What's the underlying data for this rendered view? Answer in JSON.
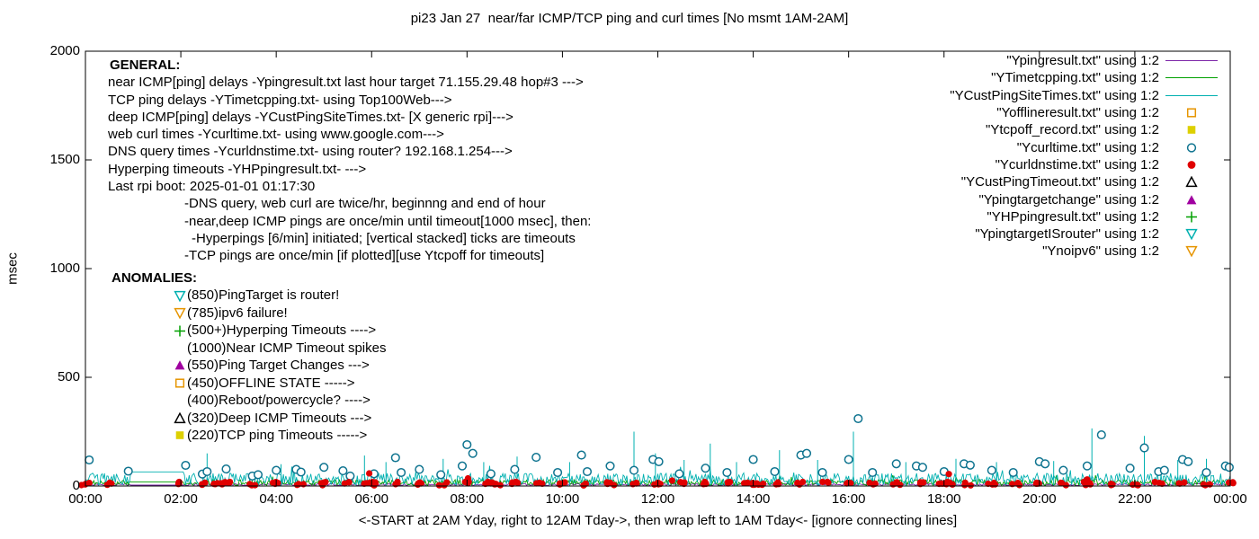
{
  "chart_data": {
    "type": "line+scatter",
    "title": "pi23 Jan 27  near/far ICMP/TCP ping and curl times [No msmt 1AM-2AM]",
    "xlabel": "<-START at 2AM Yday, right to 12AM Tday->, then wrap left to 1AM Tday<- [ignore connecting lines]",
    "ylabel": "msec",
    "ylim": [
      0,
      2000
    ],
    "xlim_hours": [
      0,
      24
    ],
    "grid": false,
    "legend_position": "top-right-inside",
    "y_ticks": [
      0,
      500,
      1000,
      1500,
      2000
    ],
    "y_tick_labels": [
      "0",
      "500",
      "1000",
      "1500",
      "2000"
    ],
    "x_tick_labels": [
      "00:00",
      "02:00",
      "04:00",
      "06:00",
      "08:00",
      "10:00",
      "12:00",
      "14:00",
      "16:00",
      "18:00",
      "20:00",
      "22:00",
      "00:00"
    ],
    "series": [
      {
        "label": "\"Ypingresult.txt\" using 1:2",
        "color": "#7d26a8",
        "style": "line"
      },
      {
        "label": "\"YTimetcpping.txt\" using 1:2",
        "color": "#00a000",
        "style": "line"
      },
      {
        "label": "\"YCustPingSiteTimes.txt\" using 1:2",
        "color": "#00b0b0",
        "style": "line"
      },
      {
        "label": "\"Yofflineresult.txt\" using 1:2",
        "color": "#e69500",
        "style": "open-square"
      },
      {
        "label": "\"Ytcpoff_record.txt\" using 1:2",
        "color": "#ddd000",
        "style": "filled-square"
      },
      {
        "label": "\"Ycurltime.txt\" using 1:2",
        "color": "#0f7490",
        "style": "open-circle"
      },
      {
        "label": "\"Ycurldnstime.txt\" using 1:2",
        "color": "#e00000",
        "style": "filled-circle"
      },
      {
        "label": "\"YCustPingTimeout.txt\" using 1:2",
        "color": "#000000",
        "style": "open-triangle-up"
      },
      {
        "label": "\"Ypingtargetchange\" using 1:2",
        "color": "#a000a0",
        "style": "filled-triangle-up"
      },
      {
        "label": "\"YHPpingresult.txt\" using 1:2",
        "color": "#00a000",
        "style": "plus"
      },
      {
        "label": "\"YpingtargetISrouter\" using 1:2",
        "color": "#00b0b0",
        "style": "open-triangle-down"
      },
      {
        "label": "\"Ynoipv6\" using 1:2",
        "color": "#e69500",
        "style": "open-triangle-down"
      }
    ],
    "line_series": [
      {
        "name": "Ypingresult.txt",
        "color": "#7d26a8",
        "base": 2,
        "amp": 9,
        "spike_amp": 0,
        "flat": 4
      },
      {
        "name": "YTimetcpping.txt",
        "color": "#00a000",
        "base": 3,
        "amp": 26,
        "spike_amp": 35,
        "flat": 18
      },
      {
        "name": "YCustPingSiteTimes.txt",
        "color": "#00b0b0",
        "base": 4,
        "amp": 55,
        "spike_amp": 60,
        "flat": 65
      }
    ],
    "gap": {
      "start_hour": 0.95,
      "end_hour": 2.05,
      "note": "No msmt 1AM-2AM"
    },
    "spikes": [
      [
        2.55,
        150
      ],
      [
        4.1,
        100
      ],
      [
        5.85,
        140
      ],
      [
        6.3,
        110
      ],
      [
        7.5,
        125
      ],
      [
        8.35,
        110
      ],
      [
        9.05,
        135
      ],
      [
        10.15,
        110
      ],
      [
        11.5,
        250
      ],
      [
        11.95,
        150
      ],
      [
        12.55,
        120
      ],
      [
        13.1,
        195
      ],
      [
        13.65,
        110
      ],
      [
        14.55,
        165
      ],
      [
        15.35,
        120
      ],
      [
        16.1,
        250
      ],
      [
        17.2,
        110
      ],
      [
        18.25,
        125
      ],
      [
        19.1,
        110
      ],
      [
        20.3,
        115
      ],
      [
        21.1,
        265
      ],
      [
        22.2,
        230
      ],
      [
        22.9,
        120
      ],
      [
        23.5,
        125
      ]
    ],
    "curl_points": [
      [
        0.08,
        120
      ],
      [
        0.9,
        68
      ],
      [
        2.1,
        95
      ],
      [
        2.45,
        55
      ],
      [
        2.55,
        66
      ],
      [
        2.95,
        78
      ],
      [
        3.5,
        46
      ],
      [
        3.62,
        52
      ],
      [
        4.0,
        72
      ],
      [
        4.42,
        76
      ],
      [
        4.52,
        64
      ],
      [
        5.0,
        86
      ],
      [
        5.4,
        70
      ],
      [
        5.55,
        46
      ],
      [
        6.05,
        56
      ],
      [
        6.5,
        130
      ],
      [
        6.62,
        62
      ],
      [
        7.0,
        76
      ],
      [
        7.45,
        52
      ],
      [
        7.9,
        92
      ],
      [
        8.0,
        190
      ],
      [
        8.12,
        150
      ],
      [
        8.5,
        56
      ],
      [
        9.0,
        76
      ],
      [
        9.45,
        132
      ],
      [
        9.9,
        62
      ],
      [
        10.4,
        142
      ],
      [
        10.52,
        66
      ],
      [
        11.0,
        92
      ],
      [
        11.5,
        72
      ],
      [
        11.9,
        122
      ],
      [
        12.02,
        112
      ],
      [
        12.45,
        56
      ],
      [
        13.0,
        82
      ],
      [
        13.45,
        62
      ],
      [
        14.0,
        122
      ],
      [
        14.45,
        66
      ],
      [
        15.0,
        142
      ],
      [
        15.12,
        150
      ],
      [
        15.45,
        62
      ],
      [
        16.0,
        122
      ],
      [
        16.2,
        310
      ],
      [
        16.5,
        62
      ],
      [
        17.0,
        102
      ],
      [
        17.42,
        92
      ],
      [
        17.55,
        86
      ],
      [
        18.0,
        66
      ],
      [
        18.42,
        102
      ],
      [
        18.55,
        96
      ],
      [
        19.0,
        72
      ],
      [
        19.45,
        62
      ],
      [
        20.0,
        112
      ],
      [
        20.12,
        102
      ],
      [
        20.5,
        72
      ],
      [
        21.0,
        92
      ],
      [
        21.3,
        235
      ],
      [
        21.9,
        82
      ],
      [
        22.2,
        175
      ],
      [
        22.5,
        66
      ],
      [
        22.62,
        72
      ],
      [
        23.0,
        122
      ],
      [
        23.12,
        112
      ],
      [
        23.5,
        62
      ],
      [
        23.9,
        92
      ],
      [
        23.98,
        86
      ]
    ],
    "dns_cluster_hours": [
      0,
      0.5,
      2,
      2.5,
      3,
      3.5,
      4,
      4.5,
      5,
      5.5,
      6,
      6.5,
      7,
      7.5,
      8,
      8.5,
      9,
      9.5,
      10,
      10.5,
      11,
      11.5,
      12,
      12.5,
      13,
      13.5,
      14,
      14.5,
      15,
      15.5,
      16,
      16.5,
      17,
      17.5,
      18,
      18.5,
      19,
      19.5,
      20,
      20.5,
      21,
      21.5,
      22,
      22.5,
      23,
      23.5,
      24
    ],
    "dns_wide_cluster_hours": [
      2.8,
      6,
      8.5,
      14,
      18.1
    ],
    "dns_high_points": [
      [
        5.95,
        58
      ],
      [
        8.02,
        35
      ],
      [
        12.3,
        25
      ],
      [
        18.1,
        55
      ],
      [
        21.0,
        30
      ]
    ]
  },
  "annotations": {
    "general": {
      "heading": "GENERAL:",
      "lines": [
        {
          "text": "near ICMP[ping] delays -Ypingresult.txt last hour target 71.155.29.48 hop#3 --->",
          "indent": 0
        },
        {
          "text": "TCP ping delays -YTimetcpping.txt- using Top100Web--->",
          "indent": 0
        },
        {
          "text": "deep ICMP[ping] delays -YCustPingSiteTimes.txt- [X generic rpi]--->",
          "indent": 0
        },
        {
          "text": "web curl times -Ycurltime.txt- using www.google.com--->",
          "indent": 0
        },
        {
          "text": "DNS query times -Ycurldnstime.txt- using router? 192.168.1.254--->",
          "indent": 0
        },
        {
          "text": "Hyperping timeouts -YHPpingresult.txt- --->",
          "indent": 0
        },
        {
          "text": "Last rpi boot: 2025-01-01 01:17:30",
          "indent": 0
        },
        {
          "text": "-DNS query, web curl are twice/hr, beginnng and end of hour",
          "indent": 85
        },
        {
          "text": "-near,deep ICMP pings are once/min until timeout[1000 msec], then:",
          "indent": 85
        },
        {
          "text": "-Hyperpings [6/min] initiated; [vertical stacked] ticks are timeouts",
          "indent": 93
        },
        {
          "text": "-TCP pings are once/min [if plotted][use Ytcpoff for timeouts]",
          "indent": 85
        }
      ]
    },
    "anomalies": {
      "heading": "ANOMALIES:",
      "items": [
        {
          "marker": "open-triangle-down",
          "color": "#00b0b0",
          "text": "(850)PingTarget is router!"
        },
        {
          "marker": "open-triangle-down",
          "color": "#e69500",
          "text": "(785)ipv6 failure!"
        },
        {
          "marker": "plus",
          "color": "#00a000",
          "text": "(500+)Hyperping Timeouts ---->"
        },
        {
          "marker": "none",
          "color": "#000000",
          "text": "(1000)Near ICMP Timeout spikes"
        },
        {
          "marker": "filled-triangle-up",
          "color": "#a000a0",
          "text": "(550)Ping Target Changes --->"
        },
        {
          "marker": "open-square",
          "color": "#e69500",
          "text": "(450)OFFLINE STATE ----->"
        },
        {
          "marker": "none",
          "color": "#000000",
          "text": "(400)Reboot/powercycle? ---->"
        },
        {
          "marker": "open-triangle-up",
          "color": "#000000",
          "text": "(320)Deep ICMP Timeouts --->"
        },
        {
          "marker": "filled-square",
          "color": "#ddd000",
          "text": "(220)TCP ping Timeouts ----->"
        }
      ]
    }
  }
}
